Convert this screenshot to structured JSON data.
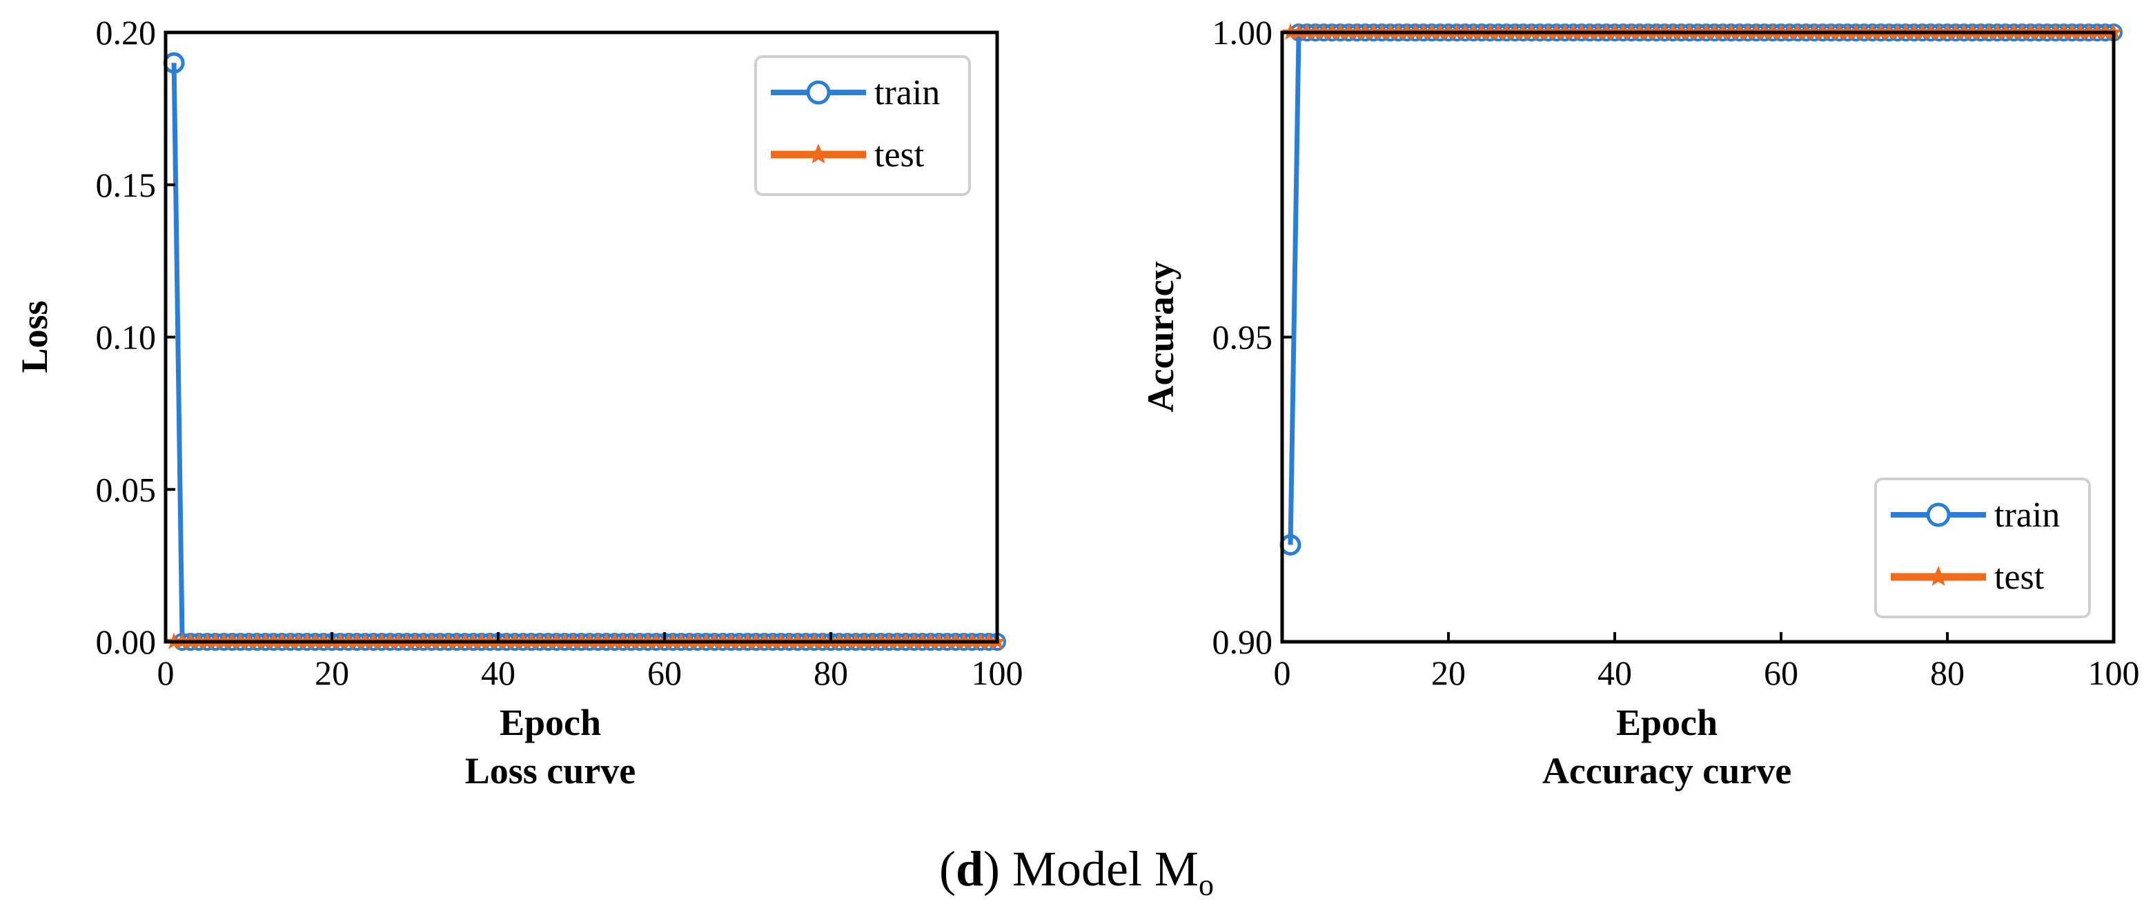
{
  "chart_data": [
    {
      "type": "line",
      "title": "",
      "subtitle": "Loss curve",
      "xlabel": "Epoch",
      "ylabel": "Loss",
      "xlim": [
        0,
        100
      ],
      "ylim": [
        0,
        0.2
      ],
      "x_ticks": [
        "0",
        "20",
        "40",
        "60",
        "80",
        "100"
      ],
      "y_ticks": [
        "0.00",
        "0.05",
        "0.10",
        "0.15",
        "0.20"
      ],
      "grid": false,
      "legend_position": "top-right",
      "series": [
        {
          "name": "train",
          "color": "#2a7fd4",
          "marker": "circle",
          "points": [
            [
              1,
              0.19
            ],
            [
              2,
              0.0
            ],
            [
              3,
              0.0
            ],
            [
              100,
              0.0
            ]
          ]
        },
        {
          "name": "test",
          "color": "#f06a1a",
          "marker": "star",
          "points": [
            [
              1,
              0.0
            ],
            [
              100,
              0.0
            ]
          ]
        }
      ]
    },
    {
      "type": "line",
      "title": "",
      "subtitle": "Accuracy curve",
      "xlabel": "Epoch",
      "ylabel": "Accuracy",
      "xlim": [
        0,
        100
      ],
      "ylim": [
        0.9,
        1.0
      ],
      "x_ticks": [
        "0",
        "20",
        "40",
        "60",
        "80",
        "100"
      ],
      "y_ticks": [
        "0.90",
        "0.95",
        "1.00"
      ],
      "grid": false,
      "legend_position": "bottom-right",
      "series": [
        {
          "name": "train",
          "color": "#2a7fd4",
          "marker": "circle",
          "points": [
            [
              1,
              0.9159
            ],
            [
              2,
              1.0
            ],
            [
              3,
              1.0
            ],
            [
              100,
              1.0
            ]
          ]
        },
        {
          "name": "test",
          "color": "#f06a1a",
          "marker": "star",
          "points": [
            [
              1,
              1.0
            ],
            [
              100,
              1.0
            ]
          ]
        }
      ]
    }
  ],
  "caption": {
    "label": "d",
    "text": " Model M",
    "subscript": "o"
  }
}
